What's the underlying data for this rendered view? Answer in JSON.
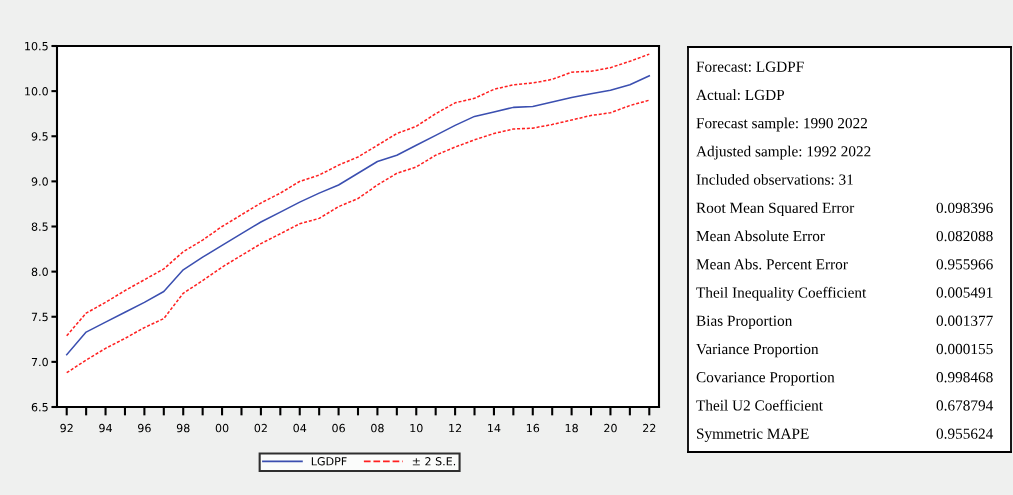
{
  "chart_data": [
    {
      "type": "line",
      "x": [
        1992,
        1993,
        1994,
        1995,
        1996,
        1997,
        1998,
        1999,
        2000,
        2001,
        2002,
        2003,
        2004,
        2005,
        2006,
        2007,
        2008,
        2009,
        2010,
        2011,
        2012,
        2013,
        2014,
        2015,
        2016,
        2017,
        2018,
        2019,
        2020,
        2021,
        2022
      ],
      "series": [
        {
          "name": "LGDPF",
          "color": "#3b4fb0",
          "line_style": "solid",
          "values": [
            7.08,
            7.33,
            7.44,
            7.55,
            7.66,
            7.78,
            8.02,
            8.16,
            8.29,
            8.42,
            8.55,
            8.66,
            8.77,
            8.87,
            8.96,
            9.09,
            9.22,
            9.29,
            9.4,
            9.51,
            9.62,
            9.72,
            9.77,
            9.82,
            9.83,
            9.88,
            9.93,
            9.97,
            10.01,
            10.07,
            10.17
          ]
        },
        {
          "name": "± 2 S.E.",
          "color": "#ff2020",
          "line_style": "dashed",
          "values": [
            7.29,
            7.54,
            7.66,
            7.79,
            7.91,
            8.03,
            8.22,
            8.35,
            8.5,
            8.63,
            8.76,
            8.87,
            9.0,
            9.07,
            9.18,
            9.27,
            9.4,
            9.53,
            9.61,
            9.75,
            9.87,
            9.92,
            10.02,
            10.07,
            10.09,
            10.13,
            10.21,
            10.22,
            10.26,
            10.33,
            10.41
          ]
        },
        {
          "color": "#ff2020",
          "line_style": "dashed",
          "values": [
            6.88,
            7.02,
            7.15,
            7.26,
            7.38,
            7.48,
            7.76,
            7.9,
            8.05,
            8.18,
            8.31,
            8.42,
            8.53,
            8.59,
            8.72,
            8.81,
            8.96,
            9.09,
            9.16,
            9.29,
            9.38,
            9.46,
            9.53,
            9.58,
            9.59,
            9.63,
            9.68,
            9.73,
            9.76,
            9.84,
            9.9
          ]
        }
      ],
      "xlim": [
        1991.5,
        2022.5
      ],
      "xticks": [
        {
          "value": 1992,
          "label": "92"
        },
        {
          "value": 1993,
          "label": null
        },
        {
          "value": 1994,
          "label": "94"
        },
        {
          "value": 1995,
          "label": null
        },
        {
          "value": 1996,
          "label": "96"
        },
        {
          "value": 1997,
          "label": null
        },
        {
          "value": 1998,
          "label": "98"
        },
        {
          "value": 1999,
          "label": null
        },
        {
          "value": 2000,
          "label": "00"
        },
        {
          "value": 2001,
          "label": null
        },
        {
          "value": 2002,
          "label": "02"
        },
        {
          "value": 2003,
          "label": null
        },
        {
          "value": 2004,
          "label": "04"
        },
        {
          "value": 2005,
          "label": null
        },
        {
          "value": 2006,
          "label": "06"
        },
        {
          "value": 2007,
          "label": null
        },
        {
          "value": 2008,
          "label": "08"
        },
        {
          "value": 2009,
          "label": null
        },
        {
          "value": 2010,
          "label": "10"
        },
        {
          "value": 2011,
          "label": null
        },
        {
          "value": 2012,
          "label": "12"
        },
        {
          "value": 2013,
          "label": null
        },
        {
          "value": 2014,
          "label": "14"
        },
        {
          "value": 2015,
          "label": null
        },
        {
          "value": 2016,
          "label": "16"
        },
        {
          "value": 2017,
          "label": null
        },
        {
          "value": 2018,
          "label": "18"
        },
        {
          "value": 2019,
          "label": null
        },
        {
          "value": 2020,
          "label": "20"
        },
        {
          "value": 2021,
          "label": null
        },
        {
          "value": 2022,
          "label": "22"
        }
      ],
      "ylim": [
        6.5,
        10.5
      ],
      "yticks": [
        {
          "value": 6.5,
          "label": "6.5"
        },
        {
          "value": 7.0,
          "label": "7.0"
        },
        {
          "value": 7.5,
          "label": "7.5"
        },
        {
          "value": 8.0,
          "label": "8.0"
        },
        {
          "value": 8.5,
          "label": "8.5"
        },
        {
          "value": 9.0,
          "label": "9.0"
        },
        {
          "value": 9.5,
          "label": "9.5"
        },
        {
          "value": 10.0,
          "label": "10.0"
        },
        {
          "value": 10.5,
          "label": "10.5"
        }
      ],
      "grid": false,
      "legend": "bottom",
      "marker": "none"
    },
    {
      "type": "other",
      "categories": [
        "Forecast: LGDPF",
        "Actual: LGDP",
        "Forecast sample: 1990 2022",
        "Adjusted sample: 1992 2022",
        "Included observations: 31",
        "Root Mean Squared Error",
        "Mean Absolute Error",
        "Mean Abs. Percent Error",
        "Theil Inequality Coefficient",
        "Bias Proportion",
        "Variance Proportion",
        "Covariance Proportion",
        "Theil U2 Coefficient",
        "Symmetric MAPE"
      ],
      "value_labels": [
        null,
        null,
        null,
        null,
        null,
        "0.098396",
        "0.082088",
        "0.955966",
        "0.005491",
        "0.001377",
        "0.000155",
        "0.998468",
        "0.678794",
        "0.955624"
      ]
    }
  ]
}
